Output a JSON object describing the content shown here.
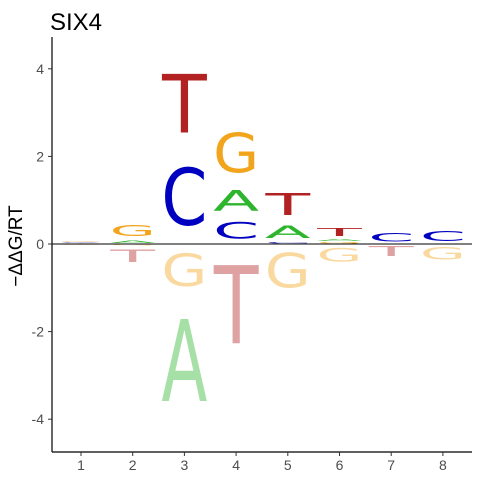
{
  "chart_data": {
    "type": "sequence-logo",
    "title": "SIX4",
    "ylabel": "−ΔΔG/RT",
    "xlabel": "",
    "x_ticks": [
      "1",
      "2",
      "3",
      "4",
      "5",
      "6",
      "7",
      "8"
    ],
    "y_ticks": [
      "-4",
      "-2",
      "0",
      "2",
      "4"
    ],
    "ylim": [
      -4.7,
      4.7
    ],
    "grid": false,
    "colors": {
      "A": "#2db52d",
      "C": "#0000c0",
      "G": "#f2a51c",
      "T": "#b22222"
    },
    "positions": [
      {
        "pos": 1,
        "stack": [
          {
            "base": "A",
            "bottom": 0.0,
            "top": 0.02
          },
          {
            "base": "C",
            "bottom": 0.02,
            "top": 0.05
          },
          {
            "base": "G",
            "bottom": 0.05,
            "top": 0.07
          },
          {
            "base": "G",
            "bottom": -0.03,
            "top": 0.0,
            "faded": true
          }
        ]
      },
      {
        "pos": 2,
        "stack": [
          {
            "base": "A",
            "bottom": 0.0,
            "top": 0.1
          },
          {
            "base": "G",
            "bottom": 0.1,
            "top": 0.5
          },
          {
            "base": "G",
            "bottom": -0.05,
            "top": 0.0,
            "faded": true
          },
          {
            "base": "T",
            "bottom": -0.5,
            "top": -0.05,
            "faded": true
          }
        ]
      },
      {
        "pos": 3,
        "stack": [
          {
            "base": "C",
            "bottom": 0.0,
            "top": 2.1
          },
          {
            "base": "T",
            "bottom": 2.1,
            "top": 4.25
          },
          {
            "base": "G",
            "bottom": -1.2,
            "top": 0.0,
            "faded": true
          },
          {
            "base": "A",
            "bottom": -4.2,
            "top": -1.2,
            "faded": true
          }
        ]
      },
      {
        "pos": 4,
        "stack": [
          {
            "base": "C",
            "bottom": 0.0,
            "top": 0.6
          },
          {
            "base": "A",
            "bottom": 0.6,
            "top": 1.35
          },
          {
            "base": "G",
            "bottom": 1.35,
            "top": 2.8
          },
          {
            "base": "T",
            "bottom": -2.85,
            "top": 0.0,
            "faded": true
          }
        ]
      },
      {
        "pos": 5,
        "stack": [
          {
            "base": "C",
            "bottom": 0.0,
            "top": 0.05
          },
          {
            "base": "A",
            "bottom": 0.05,
            "top": 0.5
          },
          {
            "base": "T",
            "bottom": 0.5,
            "top": 1.3
          },
          {
            "base": "G",
            "bottom": -1.25,
            "top": 0.0,
            "faded": true
          }
        ]
      },
      {
        "pos": 6,
        "stack": [
          {
            "base": "G",
            "bottom": 0.0,
            "top": 0.05
          },
          {
            "base": "A",
            "bottom": 0.05,
            "top": 0.12
          },
          {
            "base": "T",
            "bottom": 0.12,
            "top": 0.4
          },
          {
            "base": "G",
            "bottom": -0.5,
            "top": 0.0,
            "faded": true
          }
        ]
      },
      {
        "pos": 7,
        "stack": [
          {
            "base": "C",
            "bottom": 0.0,
            "top": 0.3
          },
          {
            "base": "T",
            "bottom": -0.35,
            "top": 0.0,
            "faded": true
          }
        ]
      },
      {
        "pos": 8,
        "stack": [
          {
            "base": "C",
            "bottom": 0.0,
            "top": 0.35
          },
          {
            "base": "G",
            "bottom": -0.45,
            "top": 0.0,
            "faded": true
          }
        ]
      }
    ]
  }
}
